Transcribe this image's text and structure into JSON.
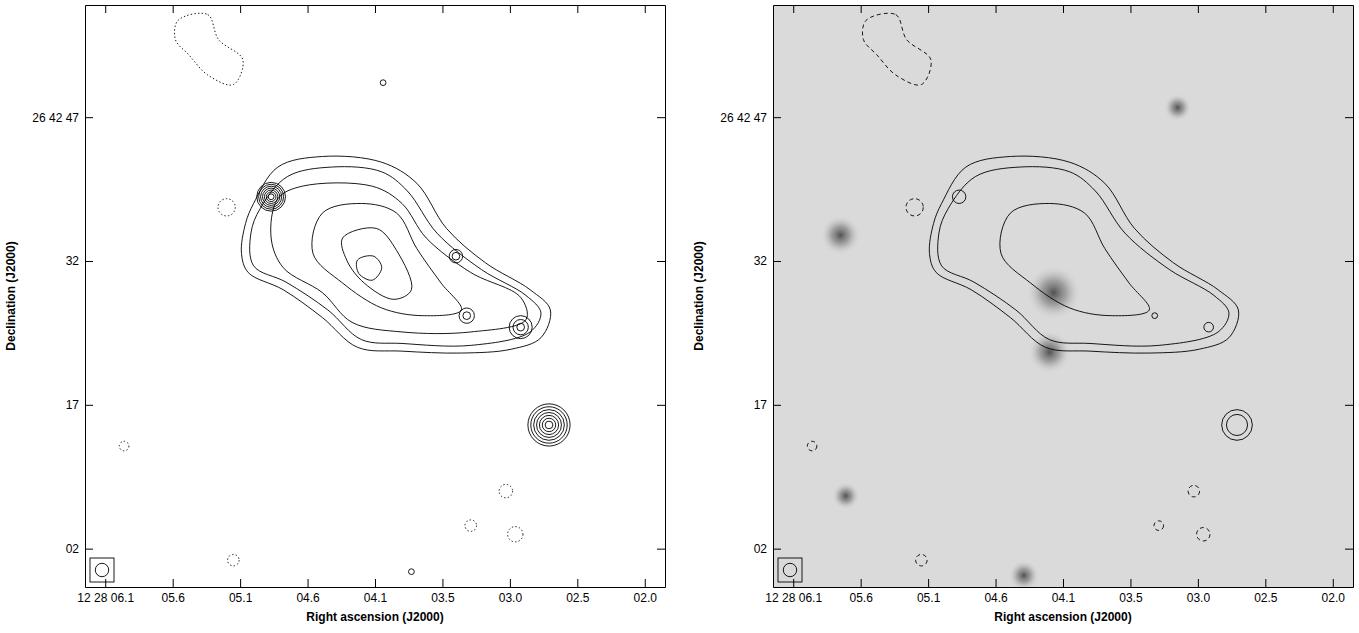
{
  "chart_data": [
    {
      "type": "contour",
      "x_label": "Right ascension (J2000)",
      "y_label": "Declination (J2000)",
      "xlim": [
        6.2,
        1.9
      ],
      "ylim": [
        -2,
        58.7
      ],
      "xticks": [
        {
          "value": 6.05,
          "label": "12 28 06.1"
        },
        {
          "value": 5.55,
          "label": "05.6"
        },
        {
          "value": 5.05,
          "label": "05.1"
        },
        {
          "value": 4.55,
          "label": "04.6"
        },
        {
          "value": 4.05,
          "label": "04.1"
        },
        {
          "value": 3.55,
          "label": "03.5"
        },
        {
          "value": 3.05,
          "label": "03.0"
        },
        {
          "value": 2.55,
          "label": "02.5"
        },
        {
          "value": 2.05,
          "label": "02.0"
        }
      ],
      "yticks": [
        {
          "value": 47,
          "label": "26 42 47"
        },
        32,
        17,
        {
          "value": 2,
          "label": "02"
        }
      ],
      "contours": [
        {
          "line_style": "solid",
          "x": [
            4.95,
            4.77,
            4.44,
            4.0,
            3.74,
            3.52,
            3.23,
            2.9,
            2.75,
            2.82,
            3.04,
            3.41,
            3.85,
            4.18,
            4.44,
            4.73,
            4.99,
            5.04,
            5.01
          ],
          "y": [
            38.0,
            41.8,
            42.9,
            42.3,
            40.1,
            35.4,
            31.8,
            29.0,
            26.9,
            24.0,
            22.8,
            22.4,
            22.6,
            23.0,
            26.1,
            29.0,
            30.8,
            32.8,
            35.9
          ]
        },
        {
          "line_style": "solid",
          "x": [
            4.9,
            4.7,
            4.37,
            4.0,
            3.81,
            3.59,
            3.26,
            2.93,
            2.82,
            2.9,
            3.34,
            3.85,
            4.15,
            4.4,
            4.71,
            4.95,
            4.97
          ],
          "y": [
            37.5,
            40.8,
            41.8,
            41.3,
            39.3,
            34.9,
            31.1,
            28.4,
            26.6,
            24.6,
            23.2,
            23.4,
            23.8,
            26.9,
            29.8,
            31.5,
            34.9
          ]
        },
        {
          "line_style": "solid",
          "x": [
            4.77,
            4.59,
            4.07,
            3.85,
            3.67,
            3.34,
            2.97,
            2.93,
            3.34,
            3.85,
            4.22,
            4.44,
            4.73,
            4.82
          ],
          "y": [
            38.5,
            39.8,
            39.8,
            38.0,
            34.4,
            30.8,
            28.2,
            25.9,
            24.6,
            24.6,
            25.6,
            28.7,
            31.3,
            34.4
          ]
        },
        {
          "line_style": "solid",
          "x": [
            4.44,
            4.15,
            3.89,
            3.74,
            3.56,
            3.41,
            3.7,
            4.0,
            4.29,
            4.51
          ],
          "y": [
            37.0,
            38.0,
            37.0,
            33.3,
            29.7,
            26.9,
            26.3,
            27.1,
            29.7,
            32.8
          ]
        },
        {
          "line_style": "solid",
          "x": [
            4.29,
            4.04,
            3.89,
            3.78,
            3.91,
            4.13,
            4.26
          ],
          "y": [
            34.4,
            35.4,
            33.1,
            29.0,
            28.0,
            29.7,
            32.1
          ]
        },
        {
          "line_style": "solid",
          "x": [
            4.18,
            4.06,
            4.0,
            4.07,
            4.17
          ],
          "y": [
            32.1,
            32.5,
            31.3,
            30.0,
            30.7
          ]
        },
        {
          "line_style": "dotted",
          "x": [
            5.51,
            5.29,
            5.21,
            5.03,
            5.1,
            5.29,
            5.43,
            5.53
          ],
          "y": [
            57.1,
            57.7,
            55.1,
            53.0,
            50.4,
            51.4,
            53.5,
            55.1
          ]
        }
      ],
      "rings": [
        {
          "line_style": "solid",
          "x": 4.82,
          "y": 38.7,
          "radii": [
            0.3,
            0.5,
            0.7,
            0.9,
            1.1,
            1.3,
            1.5
          ]
        },
        {
          "line_style": "solid",
          "x": 2.76,
          "y": 14.9,
          "radii": [
            0.4,
            0.7,
            1.0,
            1.3,
            1.6,
            1.9,
            2.2
          ]
        },
        {
          "line_style": "solid",
          "x": 3.45,
          "y": 32.5,
          "radii": [
            0.4,
            0.7
          ]
        },
        {
          "line_style": "solid",
          "x": 2.97,
          "y": 25.1,
          "radii": [
            0.4,
            0.8,
            1.2
          ]
        },
        {
          "line_style": "solid",
          "x": 3.37,
          "y": 26.3,
          "radii": [
            0.4,
            0.8
          ]
        },
        {
          "line_style": "solid",
          "x": 3.99,
          "y": 50.6,
          "radii": [
            0.3
          ]
        },
        {
          "line_style": "solid",
          "x": 3.78,
          "y": -0.4,
          "radii": [
            0.3
          ]
        },
        {
          "line_style": "dotted",
          "x": 5.15,
          "y": 37.6,
          "radii": [
            0.9
          ]
        },
        {
          "line_style": "dotted",
          "x": 3.08,
          "y": 8.0,
          "radii": [
            0.7
          ]
        },
        {
          "line_style": "dotted",
          "x": 3.34,
          "y": 4.4,
          "radii": [
            0.6
          ]
        },
        {
          "line_style": "dotted",
          "x": 3.01,
          "y": 3.5,
          "radii": [
            0.8
          ]
        },
        {
          "line_style": "dotted",
          "x": 5.91,
          "y": 12.7,
          "radii": [
            0.5
          ]
        },
        {
          "line_style": "dotted",
          "x": 5.1,
          "y": 0.8,
          "radii": [
            0.6
          ]
        }
      ],
      "beam": 0.7
    },
    {
      "type": "contour",
      "x_label": "Right ascension (J2000)",
      "y_label": "Declination (J2000)",
      "xlim": [
        6.2,
        1.9
      ],
      "ylim": [
        -2,
        58.7
      ],
      "xticks": [
        {
          "value": 6.05,
          "label": "12 28 06.1"
        },
        {
          "value": 5.55,
          "label": "05.6"
        },
        {
          "value": 5.05,
          "label": "05.1"
        },
        {
          "value": 4.55,
          "label": "04.6"
        },
        {
          "value": 4.05,
          "label": "04.1"
        },
        {
          "value": 3.55,
          "label": "03.5"
        },
        {
          "value": 3.05,
          "label": "03.0"
        },
        {
          "value": 2.55,
          "label": "02.5"
        },
        {
          "value": 2.05,
          "label": "02.0"
        }
      ],
      "yticks": [
        {
          "value": 47,
          "label": "26 42 47"
        },
        32,
        17,
        {
          "value": 2,
          "label": "02"
        }
      ],
      "image_sources": [
        {
          "x": 4.12,
          "y": 28.7,
          "size": 1.8
        },
        {
          "x": 4.15,
          "y": 22.5,
          "size": 1.4
        },
        {
          "x": 5.7,
          "y": 34.7,
          "size": 1.3
        },
        {
          "x": 3.2,
          "y": 48.0,
          "size": 0.9
        },
        {
          "x": 4.34,
          "y": -0.8,
          "size": 1.0
        },
        {
          "x": 5.66,
          "y": 7.5,
          "size": 0.9
        }
      ],
      "contours": [
        {
          "line_style": "solid",
          "x": [
            4.95,
            4.77,
            4.44,
            4.0,
            3.74,
            3.52,
            3.23,
            2.9,
            2.75,
            2.82,
            3.04,
            3.41,
            3.85,
            4.18,
            4.44,
            4.73,
            4.99,
            5.04,
            5.01
          ],
          "y": [
            38.0,
            41.8,
            42.9,
            42.3,
            40.1,
            35.4,
            31.8,
            29.0,
            26.9,
            24.0,
            22.8,
            22.4,
            22.6,
            23.0,
            26.1,
            29.0,
            30.8,
            32.8,
            35.9
          ]
        },
        {
          "line_style": "solid",
          "x": [
            4.9,
            4.7,
            4.37,
            4.0,
            3.81,
            3.59,
            3.26,
            2.93,
            2.82,
            2.9,
            3.34,
            3.85,
            4.15,
            4.4,
            4.71,
            4.95,
            4.97
          ],
          "y": [
            37.5,
            40.8,
            41.8,
            41.3,
            39.3,
            34.9,
            31.1,
            28.4,
            26.6,
            24.6,
            23.2,
            23.4,
            23.8,
            26.9,
            29.8,
            31.5,
            34.9
          ]
        },
        {
          "line_style": "solid",
          "x": [
            4.44,
            4.15,
            3.89,
            3.74,
            3.56,
            3.41,
            3.7,
            4.0,
            4.29,
            4.51
          ],
          "y": [
            37.0,
            38.0,
            37.0,
            33.3,
            29.7,
            26.9,
            26.3,
            27.1,
            29.7,
            32.8
          ]
        },
        {
          "line_style": "dashed",
          "x": [
            5.51,
            5.29,
            5.21,
            5.03,
            5.1,
            5.29,
            5.43,
            5.53
          ],
          "y": [
            57.1,
            57.7,
            55.1,
            53.0,
            50.4,
            51.4,
            53.5,
            55.1
          ]
        }
      ],
      "rings": [
        {
          "line_style": "solid",
          "x": 4.82,
          "y": 38.7,
          "radii": [
            0.7
          ]
        },
        {
          "line_style": "solid",
          "x": 2.76,
          "y": 14.9,
          "radii": [
            1.1,
            1.6
          ]
        },
        {
          "line_style": "solid",
          "x": 2.97,
          "y": 25.1,
          "radii": [
            0.5
          ]
        },
        {
          "line_style": "solid",
          "x": 3.37,
          "y": 26.3,
          "radii": [
            0.3
          ]
        },
        {
          "line_style": "dashed",
          "x": 5.15,
          "y": 37.6,
          "radii": [
            0.9
          ]
        },
        {
          "line_style": "dashed",
          "x": 3.08,
          "y": 8.0,
          "radii": [
            0.6
          ]
        },
        {
          "line_style": "dashed",
          "x": 3.34,
          "y": 4.4,
          "radii": [
            0.5
          ]
        },
        {
          "line_style": "dashed",
          "x": 3.01,
          "y": 3.5,
          "radii": [
            0.7
          ]
        },
        {
          "line_style": "dashed",
          "x": 5.91,
          "y": 12.7,
          "radii": [
            0.5
          ]
        },
        {
          "line_style": "dashed",
          "x": 5.1,
          "y": 0.8,
          "radii": [
            0.6
          ]
        }
      ],
      "beam": 0.7
    }
  ]
}
